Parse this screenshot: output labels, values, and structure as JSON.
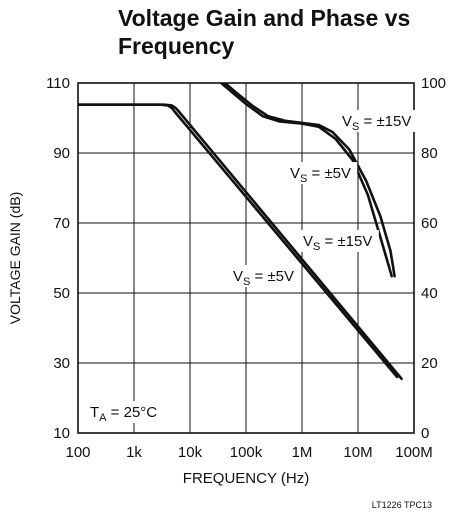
{
  "chart_data": {
    "type": "line",
    "title": "Voltage Gain and Phase vs Frequency",
    "xlabel": "FREQUENCY (Hz)",
    "ylabel": "VOLTAGE GAIN (dB)",
    "x_scale": "log",
    "xlim": [
      100,
      100000000
    ],
    "ylim": [
      10,
      110
    ],
    "y2lim": [
      0,
      100
    ],
    "grid": true,
    "x_ticks": [
      100,
      1000,
      10000,
      100000,
      1000000,
      10000000,
      100000000
    ],
    "x_tick_labels": [
      "100",
      "1k",
      "10k",
      "100k",
      "1M",
      "10M",
      "100M"
    ],
    "y_ticks": [
      10,
      30,
      50,
      70,
      90,
      110
    ],
    "y_tick_labels": [
      "10",
      "30",
      "50",
      "70",
      "90",
      "110"
    ],
    "y2_ticks": [
      0,
      20,
      40,
      60,
      80,
      100
    ],
    "y2_tick_labels": [
      "0",
      "20",
      "40",
      "60",
      "80",
      "100"
    ],
    "series": [
      {
        "name": "VS = ±5V",
        "axis": "gain",
        "points": [
          [
            100,
            103.8
          ],
          [
            3000,
            103.8
          ],
          [
            4000,
            103.6
          ],
          [
            4800,
            102.8
          ],
          [
            5200,
            102.0
          ],
          [
            50000000,
            26.0
          ]
        ]
      },
      {
        "name": "VS = ±15V",
        "axis": "gain",
        "points": [
          [
            100,
            103.8
          ],
          [
            3500,
            103.8
          ],
          [
            4700,
            103.6
          ],
          [
            5600,
            102.8
          ],
          [
            6200,
            102.0
          ],
          [
            60000000,
            25.5
          ]
        ]
      },
      {
        "name": "VS = ±15V",
        "axis": "phase",
        "points": [
          [
            36000,
            100
          ],
          [
            60000,
            97
          ],
          [
            100000,
            94
          ],
          [
            200000,
            90.5
          ],
          [
            400000,
            89.0
          ],
          [
            1000000,
            88.4
          ],
          [
            2000000,
            87.5
          ],
          [
            4000000,
            84
          ],
          [
            8000000,
            78
          ],
          [
            15000000,
            68
          ],
          [
            25000000,
            56
          ],
          [
            35000000,
            48
          ],
          [
            40000000,
            44.8
          ]
        ]
      },
      {
        "name": "VS = ±5V",
        "axis": "phase",
        "points": [
          [
            42000,
            100
          ],
          [
            70000,
            97
          ],
          [
            130000,
            93.5
          ],
          [
            250000,
            90.5
          ],
          [
            500000,
            89.2
          ],
          [
            1000000,
            88.6
          ],
          [
            2000000,
            88.0
          ],
          [
            3500000,
            86
          ],
          [
            7000000,
            81
          ],
          [
            14000000,
            72
          ],
          [
            25000000,
            62
          ],
          [
            38000000,
            52
          ],
          [
            45000000,
            44.8
          ]
        ]
      }
    ],
    "annotations": [
      {
        "id": "vs15-phase",
        "text": "V",
        "sub": "S",
        "rest": " = ±15V"
      },
      {
        "id": "vs5-phase",
        "text": "V",
        "sub": "S",
        "rest": " = ±5V"
      },
      {
        "id": "vs15-gain",
        "text": "V",
        "sub": "S",
        "rest": " = ±15V"
      },
      {
        "id": "vs5-gain",
        "text": "V",
        "sub": "S",
        "rest": " = ±5V"
      },
      {
        "id": "temp",
        "text": "T",
        "sub": "A",
        "rest": " = 25°C"
      }
    ],
    "footnote": "LT1226 TPC13"
  }
}
